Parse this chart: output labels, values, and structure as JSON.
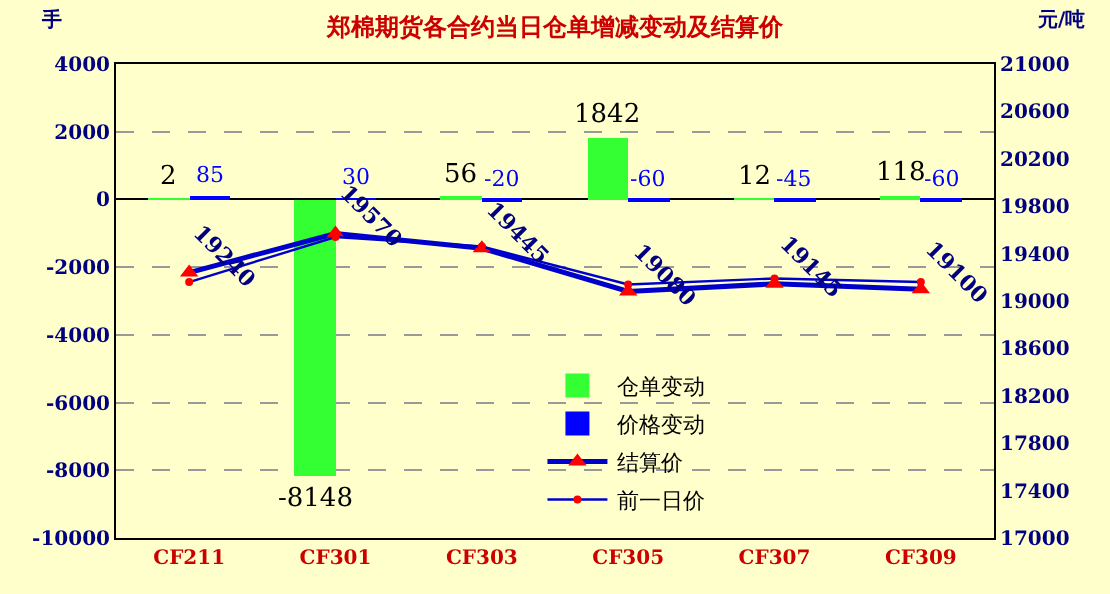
{
  "chart_data": {
    "type": "bar",
    "title": "郑棉期货各合约当日仓单增减变动及结算价",
    "ylabel": "手",
    "y2label": "元/吨",
    "categories": [
      "CF211",
      "CF301",
      "CF303",
      "CF305",
      "CF307",
      "CF309"
    ],
    "series": [
      {
        "name": "仓单变动",
        "color": "#33ff33",
        "values": [
          2,
          -8148,
          56,
          1842,
          12,
          118
        ],
        "value_labels": [
          "2",
          "-8148",
          "56",
          "1842",
          "12",
          "118"
        ]
      },
      {
        "name": "价格变动",
        "color": "#0000ff",
        "values": [
          85,
          30,
          -20,
          -60,
          -45,
          -60
        ],
        "value_labels": [
          "85",
          "30",
          "-20",
          "-60",
          "-45",
          "-60"
        ]
      },
      {
        "name": "结算价",
        "type": "line",
        "axis": "y2",
        "color": "#0000cc",
        "marker": "triangle",
        "values": [
          19240,
          19570,
          19445,
          19080,
          19145,
          19100
        ],
        "value_labels": [
          "19240",
          "19570",
          "19445",
          "19080",
          "19145",
          "19100"
        ]
      },
      {
        "name": "前一日价",
        "type": "line",
        "axis": "y2",
        "color": "#0000cc",
        "marker": "circle",
        "values": [
          19160,
          19540,
          19460,
          19140,
          19190,
          19160
        ]
      }
    ],
    "ylim": [
      -10000,
      4000
    ],
    "yticks": [
      -10000,
      -8000,
      -6000,
      -4000,
      -2000,
      0,
      2000,
      4000
    ],
    "y2lim": [
      17000,
      21000
    ],
    "y2ticks": [
      17000,
      17400,
      17800,
      18200,
      18600,
      19000,
      19400,
      19800,
      20200,
      20600,
      21000
    ],
    "grid": "y",
    "legend": "bottom"
  }
}
